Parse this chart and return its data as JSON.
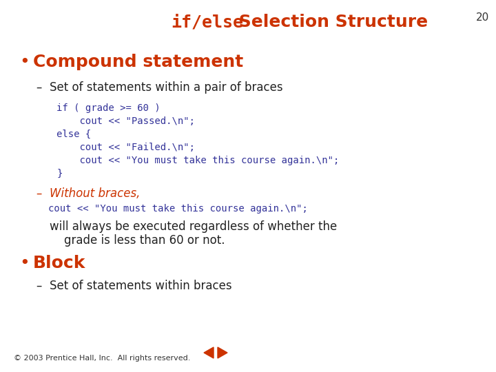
{
  "bg_color": "#ffffff",
  "slide_number": "20",
  "title_code": "if/else",
  "title_rest": " Selection Structure",
  "title_color": "#cc3300",
  "bullet1": "Compound statement",
  "bullet1_color": "#cc3300",
  "dash1": "Set of statements within a pair of braces",
  "dash1_color": "#222222",
  "code_block1": [
    "if ( grade >= 60 )",
    "    cout << \"Passed.\\n\";",
    "else {",
    "    cout << \"Failed.\\n\";",
    "    cout << \"You must take this course again.\\n\";",
    "}"
  ],
  "code_color": "#333399",
  "dash2": "Without braces,",
  "dash2_color": "#cc3300",
  "code_line2": "cout << \"You must take this course again.\\n\";",
  "prose_line1": "will always be executed regardless of whether the",
  "prose_line2": "    grade is less than 60 or not.",
  "prose_color": "#222222",
  "bullet2": "Block",
  "bullet2_color": "#cc3300",
  "dash3": "Set of statements within braces",
  "dash3_color": "#222222",
  "footer": "© 2003 Prentice Hall, Inc.  All rights reserved.",
  "footer_color": "#333333",
  "nav_color": "#cc3300"
}
